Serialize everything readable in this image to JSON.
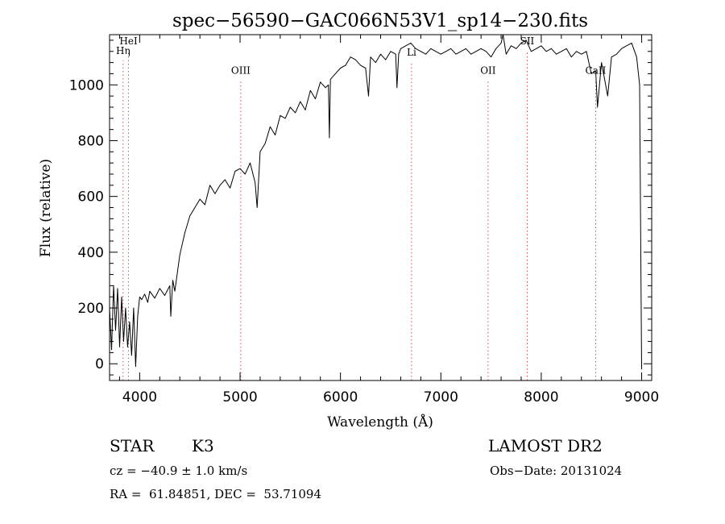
{
  "chart_data": {
    "type": "line",
    "title": "spec−56590−GAC066N53V1_sp14−230.fits",
    "xlabel": "Wavelength (Å)",
    "ylabel": "Flux (relative)",
    "xlim": [
      3700,
      9100
    ],
    "ylim": [
      -60,
      1180
    ],
    "xticks": [
      4000,
      5000,
      6000,
      7000,
      8000,
      9000
    ],
    "yticks": [
      0,
      200,
      400,
      600,
      800,
      1000
    ],
    "grid": false,
    "spectral_lines": [
      {
        "name": "HeI",
        "wavelength": 3889,
        "label_y": 1145
      },
      {
        "name": "Hη",
        "wavelength": 3835,
        "label_y": 1110
      },
      {
        "name": "OIII",
        "wavelength": 5007,
        "label_y": 1040
      },
      {
        "name": "Li",
        "wavelength": 6708,
        "label_y": 1105
      },
      {
        "name": "OII",
        "wavelength": 7470,
        "label_y": 1040
      },
      {
        "name": "SII",
        "wavelength": 7860,
        "label_y": 1145
      },
      {
        "name": "CaII",
        "wavelength": 8542,
        "label_y": 1040
      }
    ],
    "series": [
      {
        "x": [
          3700,
          3720,
          3740,
          3760,
          3780,
          3800,
          3820,
          3840,
          3860,
          3880,
          3900,
          3920,
          3940,
          3960,
          3980,
          4000,
          4020,
          4050,
          4080,
          4100,
          4150,
          4200,
          4250,
          4300,
          4310,
          4330,
          4350,
          4400,
          4450,
          4500,
          4550,
          4600,
          4650,
          4700,
          4750,
          4800,
          4850,
          4900,
          4950,
          5000,
          5050,
          5100,
          5150,
          5170,
          5200,
          5250,
          5300,
          5350,
          5400,
          5450,
          5500,
          5550,
          5600,
          5650,
          5700,
          5750,
          5800,
          5850,
          5880,
          5890,
          5900,
          5950,
          6000,
          6050,
          6100,
          6150,
          6200,
          6250,
          6280,
          6300,
          6350,
          6400,
          6450,
          6500,
          6550,
          6563,
          6580,
          6600,
          6650,
          6700,
          6750,
          6800,
          6850,
          6900,
          6950,
          7000,
          7050,
          7100,
          7150,
          7200,
          7250,
          7300,
          7350,
          7400,
          7450,
          7500,
          7550,
          7600,
          7620,
          7650,
          7700,
          7750,
          7800,
          7850,
          7900,
          7950,
          8000,
          8050,
          8100,
          8150,
          8200,
          8250,
          8300,
          8350,
          8400,
          8450,
          8498,
          8542,
          8560,
          8600,
          8662,
          8700,
          8750,
          8800,
          8850,
          8900,
          8950,
          8980,
          9000
        ],
        "y": [
          200,
          50,
          280,
          120,
          270,
          60,
          240,
          80,
          200,
          60,
          150,
          30,
          200,
          -10,
          170,
          240,
          230,
          250,
          220,
          260,
          235,
          270,
          245,
          280,
          170,
          300,
          260,
          390,
          470,
          530,
          560,
          590,
          570,
          640,
          610,
          640,
          660,
          630,
          690,
          700,
          680,
          720,
          650,
          560,
          760,
          790,
          850,
          820,
          890,
          880,
          920,
          900,
          940,
          910,
          980,
          950,
          1010,
          990,
          1000,
          810,
          1020,
          1040,
          1060,
          1070,
          1100,
          1090,
          1070,
          1060,
          960,
          1100,
          1080,
          1110,
          1090,
          1120,
          1110,
          990,
          1110,
          1130,
          1140,
          1150,
          1130,
          1120,
          1110,
          1130,
          1120,
          1110,
          1120,
          1130,
          1110,
          1120,
          1130,
          1110,
          1120,
          1130,
          1120,
          1100,
          1130,
          1150,
          1180,
          1110,
          1140,
          1130,
          1150,
          1160,
          1120,
          1130,
          1140,
          1120,
          1130,
          1110,
          1120,
          1130,
          1100,
          1120,
          1110,
          1120,
          1040,
          1050,
          920,
          1080,
          960,
          1100,
          1110,
          1130,
          1140,
          1150,
          1100,
          1000,
          -20
        ]
      }
    ]
  },
  "info": {
    "object_class": "STAR",
    "subclass": "K3",
    "survey": "LAMOST DR2",
    "redshift": "cz = −40.9 ± 1.0 km/s",
    "obs_date": "Obs−Date: 20131024",
    "coordinates": "RA =  61.84851, DEC =  53.71094"
  }
}
